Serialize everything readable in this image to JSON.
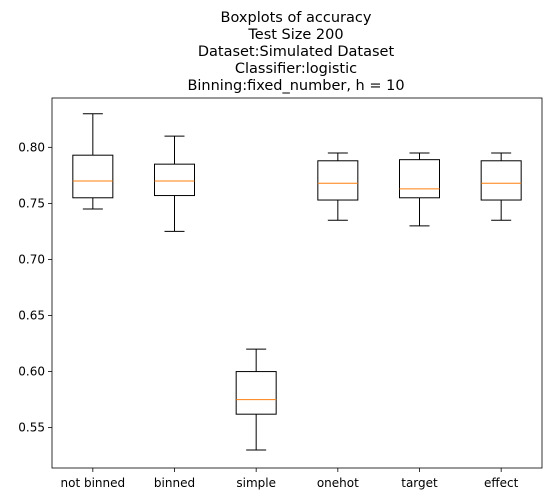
{
  "chart_data": {
    "type": "box",
    "title_lines": [
      "Boxplots of accuracy",
      "Test Size 200",
      "Dataset:Simulated Dataset",
      "Classifier:logistic",
      "Binning:fixed_number, h = 10"
    ],
    "xlabel": "",
    "ylabel": "",
    "categories": [
      "not binned",
      "binned",
      "simple",
      "onehot",
      "target",
      "effect"
    ],
    "boxes": [
      {
        "whisker_low": 0.745,
        "q1": 0.755,
        "median": 0.77,
        "q3": 0.793,
        "whisker_high": 0.83
      },
      {
        "whisker_low": 0.725,
        "q1": 0.757,
        "median": 0.77,
        "q3": 0.785,
        "whisker_high": 0.81
      },
      {
        "whisker_low": 0.53,
        "q1": 0.562,
        "median": 0.575,
        "q3": 0.6,
        "whisker_high": 0.62
      },
      {
        "whisker_low": 0.735,
        "q1": 0.753,
        "median": 0.768,
        "q3": 0.788,
        "whisker_high": 0.795
      },
      {
        "whisker_low": 0.73,
        "q1": 0.755,
        "median": 0.763,
        "q3": 0.789,
        "whisker_high": 0.795
      },
      {
        "whisker_low": 0.735,
        "q1": 0.753,
        "median": 0.768,
        "q3": 0.788,
        "whisker_high": 0.795
      }
    ],
    "y_ticks": [
      0.55,
      0.6,
      0.65,
      0.7,
      0.75,
      0.8
    ],
    "y_tick_labels": [
      "0.55",
      "0.60",
      "0.65",
      "0.70",
      "0.75",
      "0.80"
    ],
    "ylim": [
      0.514,
      0.844
    ],
    "grid": false,
    "colors": {
      "box": "#000000",
      "median": "#ff7f0e",
      "axes": "#000000"
    }
  }
}
